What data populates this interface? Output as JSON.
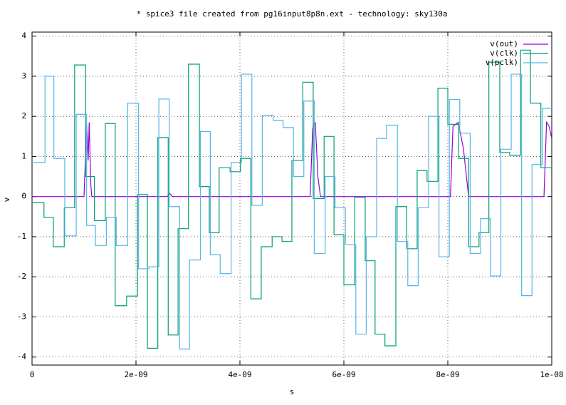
{
  "chart_data": {
    "type": "line",
    "title": "* spice3 file created from pg16input8p8n.ext - technology: sky130a",
    "x_label": "s",
    "y_label": "v",
    "xlim": [
      0,
      1e-08
    ],
    "ylim": [
      -4.2,
      4.1
    ],
    "xticks": [
      0,
      {
        "value": 2e-09,
        "label": "2e-09"
      },
      {
        "value": 4e-09,
        "label": "4e-09"
      },
      {
        "value": 6e-09,
        "label": "6e-09"
      },
      {
        "value": 8e-09,
        "label": "8e-09"
      },
      {
        "value": 1e-08,
        "label": "1e-08"
      }
    ],
    "yticks": [
      -4,
      -3,
      -2,
      -1,
      0,
      1,
      2,
      3,
      4
    ],
    "grid": true,
    "legend": "top-right",
    "series": [
      {
        "name": "v(out)",
        "color": "#9400d3",
        "x": [
          0,
          1e-09,
          1.05e-09,
          1.08e-09,
          1.1e-09,
          1.13e-09,
          1.15e-09,
          2.6e-09,
          2.65e-09,
          2.7e-09,
          5.35e-09,
          5.4e-09,
          5.45e-09,
          5.5e-09,
          5.55e-09,
          8.05e-09,
          8.1e-09,
          8.2e-09,
          8.3e-09,
          8.4e-09,
          9.85e-09,
          9.9e-09,
          9.95e-09,
          1e-08
        ],
        "values": [
          0,
          0,
          1.8,
          0.9,
          1.85,
          0.3,
          0,
          0,
          0.08,
          0,
          0,
          1.7,
          1.85,
          0.5,
          0,
          0,
          1.75,
          1.85,
          1.2,
          0,
          0,
          1.85,
          1.75,
          1.45
        ]
      },
      {
        "name": "v(clk)",
        "color": "#009e73",
        "x": [
          0,
          2.3e-10,
          2.3e-10,
          4.1e-10,
          4.1e-10,
          6.2e-10,
          6.2e-10,
          8.2e-10,
          8.2e-10,
          1.03e-09,
          1.03e-09,
          1.2e-09,
          1.2e-09,
          1.41e-09,
          1.41e-09,
          1.6e-09,
          1.6e-09,
          1.82e-09,
          1.82e-09,
          2.03e-09,
          2.03e-09,
          2.22e-09,
          2.22e-09,
          2.42e-09,
          2.42e-09,
          2.62e-09,
          2.62e-09,
          2.81e-09,
          2.81e-09,
          3.01e-09,
          3.01e-09,
          3.22e-09,
          3.22e-09,
          3.41e-09,
          3.41e-09,
          3.6e-09,
          3.6e-09,
          3.81e-09,
          3.81e-09,
          4.01e-09,
          4.01e-09,
          4.21e-09,
          4.21e-09,
          4.41e-09,
          4.41e-09,
          4.62e-09,
          4.62e-09,
          4.81e-09,
          4.81e-09,
          5e-09,
          5e-09,
          5.21e-09,
          5.21e-09,
          5.41e-09,
          5.41e-09,
          5.62e-09,
          5.62e-09,
          5.81e-09,
          5.81e-09,
          6e-09,
          6e-09,
          6.21e-09,
          6.21e-09,
          6.41e-09,
          6.41e-09,
          6.6e-09,
          6.6e-09,
          6.79e-09,
          6.79e-09,
          7e-09,
          7e-09,
          7.21e-09,
          7.21e-09,
          7.41e-09,
          7.41e-09,
          7.6e-09,
          7.6e-09,
          7.81e-09,
          7.81e-09,
          8e-09,
          8e-09,
          8.21e-09,
          8.21e-09,
          8.4e-09,
          8.4e-09,
          8.6e-09,
          8.6e-09,
          8.79e-09,
          8.79e-09,
          9e-09,
          9e-09,
          9.19e-09,
          9.19e-09,
          9.4e-09,
          9.4e-09,
          9.59e-09,
          9.59e-09,
          9.79e-09,
          9.79e-09,
          1e-08
        ],
        "values": [
          -0.15,
          -0.15,
          -0.52,
          -0.52,
          -1.25,
          -1.25,
          -0.28,
          -0.28,
          3.28,
          3.28,
          0.5,
          0.5,
          -0.6,
          -0.6,
          1.82,
          1.82,
          -2.72,
          -2.72,
          -2.48,
          -2.48,
          0.05,
          0.05,
          -3.78,
          -3.78,
          1.47,
          1.47,
          -3.45,
          -3.45,
          -0.8,
          -0.8,
          3.3,
          3.3,
          0.25,
          0.25,
          -0.9,
          -0.9,
          0.72,
          0.72,
          0.62,
          0.62,
          0.95,
          0.95,
          -2.55,
          -2.55,
          -1.25,
          -1.25,
          -1.0,
          -1.0,
          -1.12,
          -1.12,
          0.9,
          0.9,
          2.85,
          2.85,
          -0.05,
          -0.05,
          1.5,
          1.5,
          -0.95,
          -0.95,
          -2.2,
          -2.2,
          -0.02,
          -0.02,
          -1.6,
          -1.6,
          -3.43,
          -3.43,
          -3.72,
          -3.72,
          -0.25,
          -0.25,
          -1.3,
          -1.3,
          0.65,
          0.65,
          0.38,
          0.38,
          2.7,
          2.7,
          1.8,
          1.8,
          0.95,
          0.95,
          -1.25,
          -1.25,
          -0.9,
          -0.9,
          3.35,
          3.35,
          1.1,
          1.1,
          1.03,
          1.03,
          3.65,
          3.65,
          2.33,
          2.33,
          0.72,
          0.72
        ]
      },
      {
        "name": "v(pclk)",
        "color": "#56b4e9",
        "x": [
          0,
          2.5e-10,
          2.5e-10,
          4.2e-10,
          4.2e-10,
          6.3e-10,
          6.3e-10,
          8.5e-10,
          8.5e-10,
          1.05e-09,
          1.05e-09,
          1.22e-09,
          1.22e-09,
          1.43e-09,
          1.43e-09,
          1.62e-09,
          1.62e-09,
          1.84e-09,
          1.84e-09,
          2.05e-09,
          2.05e-09,
          2.25e-09,
          2.25e-09,
          2.44e-09,
          2.44e-09,
          2.64e-09,
          2.64e-09,
          2.84e-09,
          2.84e-09,
          3.03e-09,
          3.03e-09,
          3.24e-09,
          3.24e-09,
          3.43e-09,
          3.43e-09,
          3.62e-09,
          3.62e-09,
          3.83e-09,
          3.83e-09,
          4.03e-09,
          4.03e-09,
          4.23e-09,
          4.23e-09,
          4.43e-09,
          4.43e-09,
          4.64e-09,
          4.64e-09,
          4.83e-09,
          4.83e-09,
          5.03e-09,
          5.03e-09,
          5.23e-09,
          5.23e-09,
          5.43e-09,
          5.43e-09,
          5.64e-09,
          5.64e-09,
          5.83e-09,
          5.83e-09,
          6.03e-09,
          6.03e-09,
          6.23e-09,
          6.23e-09,
          6.43e-09,
          6.43e-09,
          6.63e-09,
          6.63e-09,
          6.82e-09,
          6.82e-09,
          7.03e-09,
          7.03e-09,
          7.23e-09,
          7.23e-09,
          7.43e-09,
          7.43e-09,
          7.63e-09,
          7.63e-09,
          7.83e-09,
          7.83e-09,
          8.03e-09,
          8.03e-09,
          8.23e-09,
          8.23e-09,
          8.43e-09,
          8.43e-09,
          8.63e-09,
          8.63e-09,
          8.82e-09,
          8.82e-09,
          9.02e-09,
          9.02e-09,
          9.22e-09,
          9.22e-09,
          9.42e-09,
          9.42e-09,
          9.62e-09,
          9.62e-09,
          9.82e-09,
          9.82e-09,
          1e-08
        ],
        "values": [
          0.85,
          0.85,
          3.0,
          3.0,
          0.95,
          0.95,
          -0.98,
          -0.98,
          2.05,
          2.05,
          -0.72,
          -0.72,
          -1.22,
          -1.22,
          -0.52,
          -0.52,
          -1.22,
          -1.22,
          2.33,
          2.33,
          -1.8,
          -1.8,
          -1.75,
          -1.75,
          2.43,
          2.43,
          -0.25,
          -0.25,
          -3.8,
          -3.8,
          -1.58,
          -1.58,
          1.62,
          1.62,
          -1.45,
          -1.45,
          -1.92,
          -1.92,
          0.85,
          0.85,
          3.05,
          3.05,
          -0.22,
          -0.22,
          2.02,
          2.02,
          1.9,
          1.9,
          1.72,
          1.72,
          0.5,
          0.5,
          2.38,
          2.38,
          -1.42,
          -1.42,
          0.5,
          0.5,
          -0.28,
          -0.28,
          -1.2,
          -1.2,
          -3.43,
          -3.43,
          -1.0,
          -1.0,
          1.45,
          1.45,
          1.78,
          1.78,
          -1.12,
          -1.12,
          -2.22,
          -2.22,
          -0.28,
          -0.28,
          2.0,
          2.0,
          -1.5,
          -1.5,
          2.42,
          2.42,
          1.58,
          1.58,
          -1.42,
          -1.42,
          -0.55,
          -0.55,
          -1.98,
          -1.98,
          1.18,
          1.18,
          3.05,
          3.05,
          -2.47,
          -2.47,
          0.8,
          0.8,
          2.2,
          2.2
        ]
      }
    ]
  }
}
